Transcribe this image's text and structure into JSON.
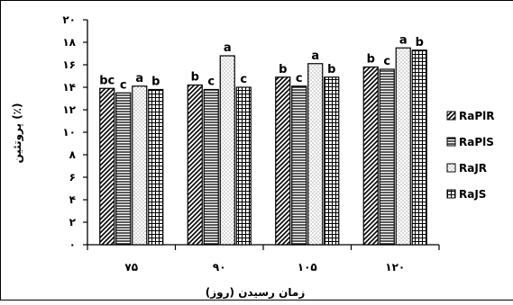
{
  "chart_data": {
    "type": "bar",
    "title": "",
    "xlabel": "زمان رسیدن (روز)",
    "ylabel": "پروتئین (٪)",
    "ylim": [
      0,
      20
    ],
    "y_ticks": [
      0,
      2,
      4,
      6,
      8,
      10,
      12,
      14,
      16,
      18,
      20
    ],
    "y_tick_labels": [
      "۰",
      "۲",
      "۴",
      "۶",
      "۸",
      "۱۰",
      "۱۲",
      "۱۴",
      "۱۶",
      "۱۸",
      "۲۰"
    ],
    "categories": [
      "۷۵",
      "۹۰",
      "۱۰۵",
      "۱۲۰"
    ],
    "series": [
      {
        "name": "RaPlR",
        "pattern": "diagonal",
        "values": [
          13.9,
          14.2,
          14.9,
          15.8
        ],
        "letters": [
          "bc",
          "b",
          "b",
          "b"
        ]
      },
      {
        "name": "RaPlS",
        "pattern": "horizontal",
        "values": [
          13.5,
          13.8,
          14.1,
          15.6
        ],
        "letters": [
          "c",
          "c",
          "c",
          "c"
        ]
      },
      {
        "name": "RaJR",
        "pattern": "dots",
        "values": [
          14.1,
          16.8,
          16.1,
          17.5
        ],
        "letters": [
          "a",
          "a",
          "a",
          "a"
        ]
      },
      {
        "name": "RaJS",
        "pattern": "grid",
        "values": [
          13.8,
          14.0,
          14.9,
          17.3
        ],
        "letters": [
          "b",
          "c",
          "b",
          "b"
        ]
      }
    ],
    "legend_position": "right",
    "grid": false
  }
}
